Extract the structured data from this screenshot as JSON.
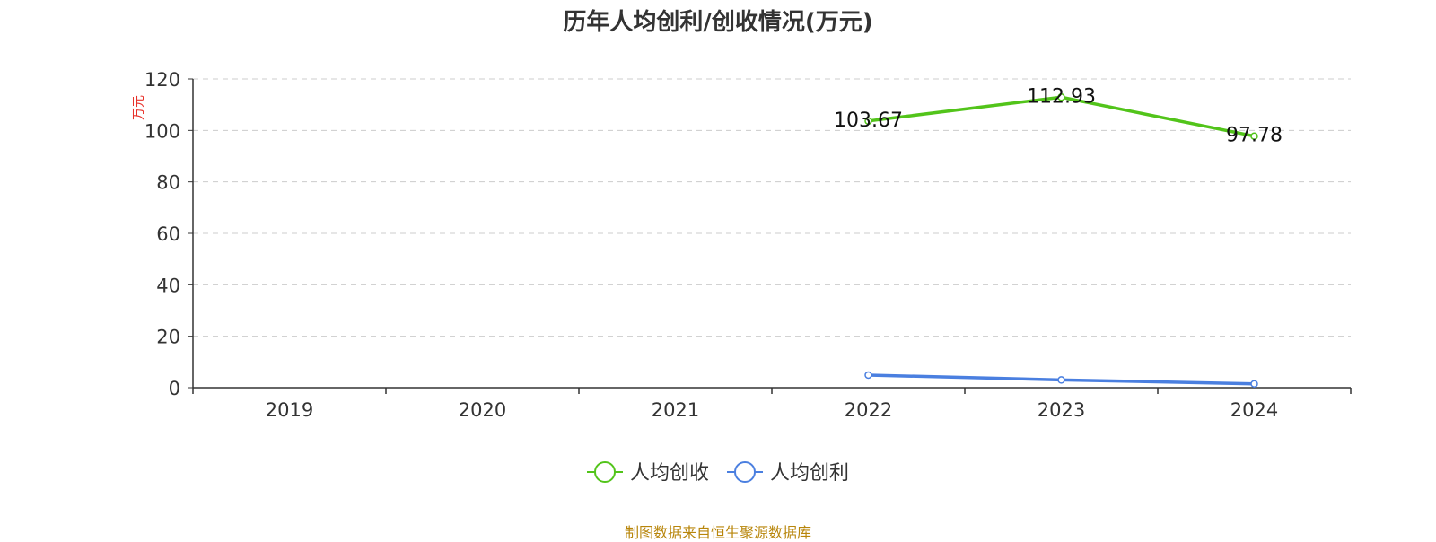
{
  "chart_data": {
    "type": "line",
    "title": "历年人均创利/创收情况(万元)",
    "ylabel": "万元",
    "xlabel": "",
    "categories": [
      "2019",
      "2020",
      "2021",
      "2022",
      "2023",
      "2024"
    ],
    "ylim": [
      0,
      120
    ],
    "yticks": [
      0,
      20,
      40,
      60,
      80,
      100,
      120
    ],
    "grid": true,
    "legend_position": "bottom",
    "series": [
      {
        "name": "人均创收",
        "color": "#52c41a",
        "values": [
          null,
          null,
          null,
          103.67,
          112.93,
          97.78
        ],
        "data_labels": [
          "",
          "",
          "",
          "103.67",
          "112.93",
          "97.78"
        ]
      },
      {
        "name": "人均创利",
        "color": "#4a7fe0",
        "values": [
          null,
          null,
          null,
          4.9,
          3.0,
          1.5
        ],
        "data_labels": []
      }
    ]
  },
  "source": "制图数据来自恒生聚源数据库"
}
